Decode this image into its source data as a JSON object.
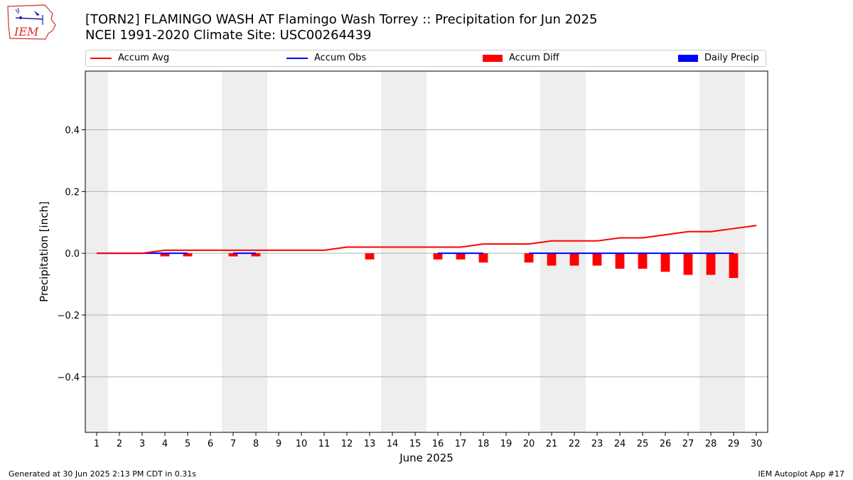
{
  "header": {
    "title_line1": "[TORN2] FLAMINGO WASH  AT Flamingo Wash Torrey :: Precipitation for Jun 2025",
    "title_line2": "NCEI 1991-2020 Climate Site: USC00264439",
    "logo_text": "IEM"
  },
  "legend": {
    "items": [
      {
        "label": "Accum Avg",
        "color": "#ff0000",
        "kind": "line"
      },
      {
        "label": "Accum Obs",
        "color": "#0000ff",
        "kind": "line"
      },
      {
        "label": "Accum Diff",
        "color": "#ff0000",
        "kind": "box"
      },
      {
        "label": "Daily Precip",
        "color": "#0000ff",
        "kind": "box"
      }
    ]
  },
  "footer": {
    "generated": "Generated at 30 Jun 2025 2:13 PM CDT in 0.31s",
    "app": "IEM Autoplot App #17"
  },
  "chart_data": {
    "type": "line",
    "xlabel": "June 2025",
    "ylabel": "Precipitation [inch]",
    "x": [
      1,
      2,
      3,
      4,
      5,
      6,
      7,
      8,
      9,
      10,
      11,
      12,
      13,
      14,
      15,
      16,
      17,
      18,
      19,
      20,
      21,
      22,
      23,
      24,
      25,
      26,
      27,
      28,
      29,
      30
    ],
    "x_ticks": [
      "1",
      "2",
      "3",
      "4",
      "5",
      "6",
      "7",
      "8",
      "9",
      "10",
      "11",
      "12",
      "13",
      "14",
      "15",
      "16",
      "17",
      "18",
      "19",
      "20",
      "21",
      "22",
      "23",
      "24",
      "25",
      "26",
      "27",
      "28",
      "29",
      "30"
    ],
    "xlim": [
      0.5,
      30.5
    ],
    "ylim": [
      -0.58,
      0.59
    ],
    "y_ticks": [
      -0.4,
      -0.2,
      0.0,
      0.2,
      0.4
    ],
    "y_tick_labels": [
      "−0.4",
      "−0.2",
      "0.0",
      "0.2",
      "0.4"
    ],
    "grid": "horizontal",
    "weekend_shading_days": [
      1,
      7,
      8,
      14,
      15,
      21,
      22,
      28,
      29
    ],
    "series": [
      {
        "name": "Accum Avg",
        "type": "line",
        "color": "#ff0000",
        "x": [
          1,
          2,
          3,
          4,
          5,
          6,
          7,
          8,
          9,
          10,
          11,
          12,
          13,
          14,
          15,
          16,
          17,
          18,
          19,
          20,
          21,
          22,
          23,
          24,
          25,
          26,
          27,
          28,
          29,
          30
        ],
        "values": [
          0,
          0,
          0,
          0.01,
          0.01,
          0.01,
          0.01,
          0.01,
          0.01,
          0.01,
          0.01,
          0.02,
          0.02,
          0.02,
          0.02,
          0.02,
          0.02,
          0.03,
          0.03,
          0.03,
          0.04,
          0.04,
          0.04,
          0.05,
          0.05,
          0.06,
          0.07,
          0.07,
          0.08,
          0.09
        ]
      },
      {
        "name": "Accum Obs",
        "type": "line",
        "color": "#0000ff",
        "segments": [
          {
            "x": [
              1,
              2,
              3,
              4,
              5
            ],
            "values": [
              0,
              0,
              0,
              0,
              0
            ]
          },
          {
            "x": [
              7,
              8
            ],
            "values": [
              0,
              0
            ]
          },
          {
            "x": [
              16,
              17,
              18
            ],
            "values": [
              0,
              0,
              0
            ]
          },
          {
            "x": [
              20,
              21,
              22,
              23,
              24,
              25,
              26,
              27,
              28,
              29
            ],
            "values": [
              0,
              0,
              0,
              0,
              0,
              0,
              0,
              0,
              0,
              0
            ]
          }
        ]
      },
      {
        "name": "Accum Diff",
        "type": "bar",
        "color": "#ff0000",
        "x": [
          4,
          5,
          7,
          8,
          13,
          16,
          17,
          18,
          20,
          21,
          22,
          23,
          24,
          25,
          26,
          27,
          28,
          29
        ],
        "values": [
          -0.01,
          -0.01,
          -0.01,
          -0.01,
          -0.02,
          -0.02,
          -0.02,
          -0.03,
          -0.03,
          -0.04,
          -0.04,
          -0.04,
          -0.05,
          -0.05,
          -0.06,
          -0.07,
          -0.07,
          -0.08
        ]
      },
      {
        "name": "Daily Precip",
        "type": "bar",
        "color": "#0000ff",
        "x": [],
        "values": []
      }
    ]
  }
}
